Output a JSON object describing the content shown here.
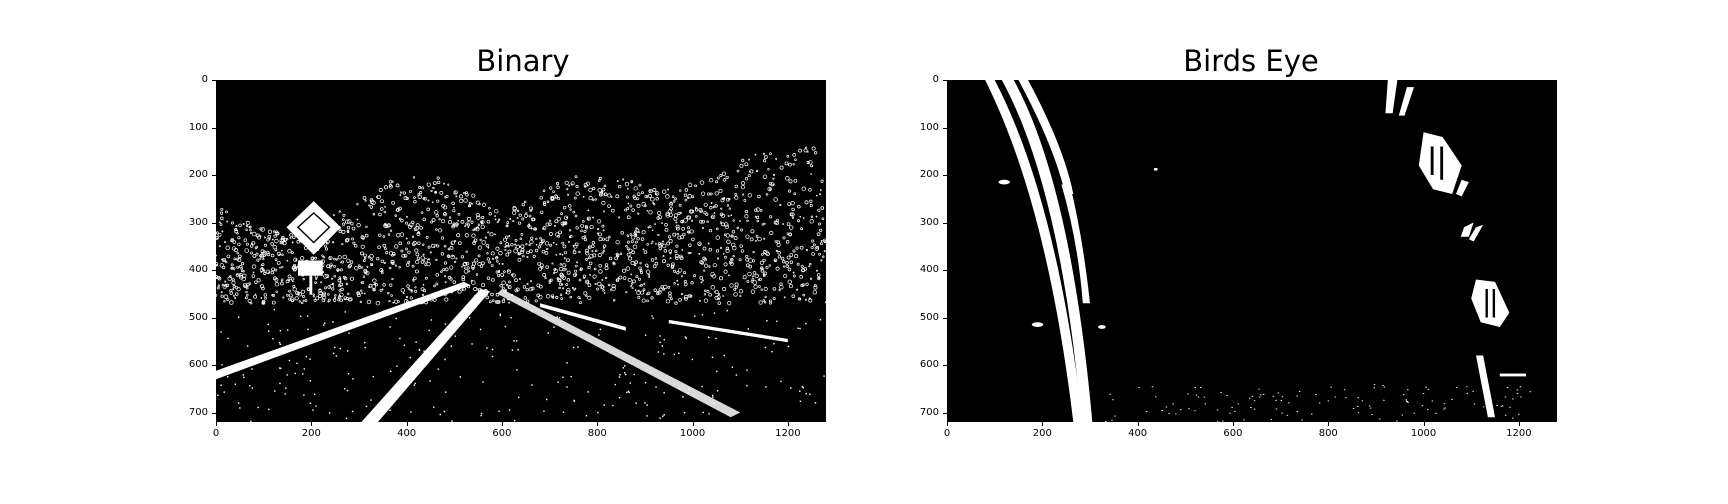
{
  "panels": [
    {
      "title": "Binary",
      "x_ticks": [
        "0",
        "200",
        "400",
        "600",
        "800",
        "1000",
        "1200"
      ],
      "y_ticks": [
        "0",
        "100",
        "200",
        "300",
        "400",
        "500",
        "600",
        "700"
      ]
    },
    {
      "title": "Birds Eye",
      "x_ticks": [
        "0",
        "200",
        "400",
        "600",
        "800",
        "1000",
        "1200"
      ],
      "y_ticks": [
        "0",
        "100",
        "200",
        "300",
        "400",
        "500",
        "600",
        "700"
      ]
    }
  ],
  "colors": {
    "background": "#000000",
    "foreground": "#ffffff",
    "page": "#ffffff"
  }
}
